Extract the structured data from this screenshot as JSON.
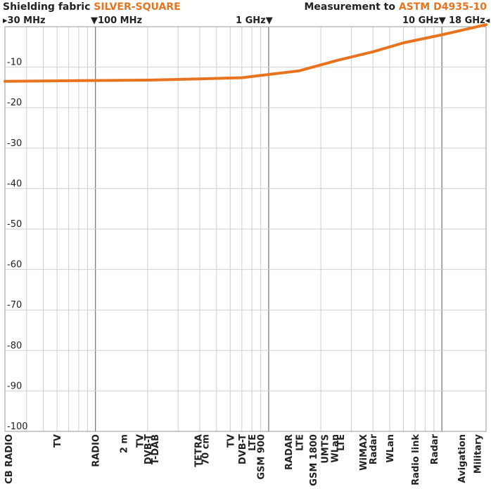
{
  "header": {
    "left_prefix": "Shielding fabric",
    "left_product": "SILVER-SQUARE",
    "right_prefix": "Measurement to",
    "right_standard": "ASTM D4935-10"
  },
  "colors": {
    "accent": "#e8731e",
    "grid": "#cfcfcf",
    "major_grid": "#555555",
    "text": "#222222"
  },
  "freq_labels": {
    "f30": "30 MHz",
    "f100": "100 MHz",
    "f1g": "1 GHz",
    "f10g": "10 GHz",
    "f18g": "18 GHz"
  },
  "chart_data": {
    "type": "line",
    "title": "Shielding fabric SILVER-SQUARE",
    "subtitle": "Measurement to ASTM D4935-10",
    "x_scale": "log",
    "x_unit": "MHz",
    "xlim": [
      30,
      18000
    ],
    "ylim": [
      -100,
      0
    ],
    "y_ticks": [
      -10,
      -20,
      -30,
      -40,
      -50,
      -60,
      -70,
      -80,
      -90,
      -100
    ],
    "y_tick_labels": [
      "-10",
      "-20",
      "-30",
      "-40",
      "-50",
      "-60",
      "-70",
      "-80",
      "-90",
      "-100"
    ],
    "grid": true,
    "series": [
      {
        "name": "SILVER-SQUARE",
        "color": "#e8731e",
        "x": [
          30,
          100,
          200,
          400,
          700,
          1000,
          1500,
          2500,
          4000,
          6000,
          10000,
          18000
        ],
        "y": [
          -13.5,
          -13.3,
          -13.2,
          -12.9,
          -12.6,
          -11.8,
          -10.9,
          -8.3,
          -6.2,
          -4.0,
          -2.0,
          0.5
        ]
      }
    ],
    "bands": [
      {
        "label": "CB RADIO",
        "x": 27
      },
      {
        "label": "TV",
        "x": 60
      },
      {
        "label": "RADIO",
        "x": 100
      },
      {
        "label": "2 m",
        "x": 145
      },
      {
        "label": "TV",
        "x": 180
      },
      {
        "label": "DVB-T",
        "x": 200
      },
      {
        "label": "T-DAB",
        "x": 220
      },
      {
        "label": "TETRA",
        "x": 390
      },
      {
        "label": "70 cm",
        "x": 430
      },
      {
        "label": "TV",
        "x": 600
      },
      {
        "label": "DVB-T",
        "x": 700
      },
      {
        "label": "LTE",
        "x": 800
      },
      {
        "label": "GSM 900",
        "x": 900
      },
      {
        "label": "RADAR",
        "x": 1300
      },
      {
        "label": "LTE",
        "x": 1500
      },
      {
        "label": "GSM 1800",
        "x": 1800
      },
      {
        "label": "UMTS",
        "x": 2100
      },
      {
        "label": "WLan",
        "x": 2400
      },
      {
        "label": "LTE",
        "x": 2600
      },
      {
        "label": "WiMAX",
        "x": 3500
      },
      {
        "label": "Radar",
        "x": 4000
      },
      {
        "label": "WLan",
        "x": 5000
      },
      {
        "label": "Radio link",
        "x": 7000
      },
      {
        "label": "Radar",
        "x": 9000
      },
      {
        "label": "Avigation",
        "x": 13000
      },
      {
        "label": "Military",
        "x": 16000
      }
    ]
  }
}
